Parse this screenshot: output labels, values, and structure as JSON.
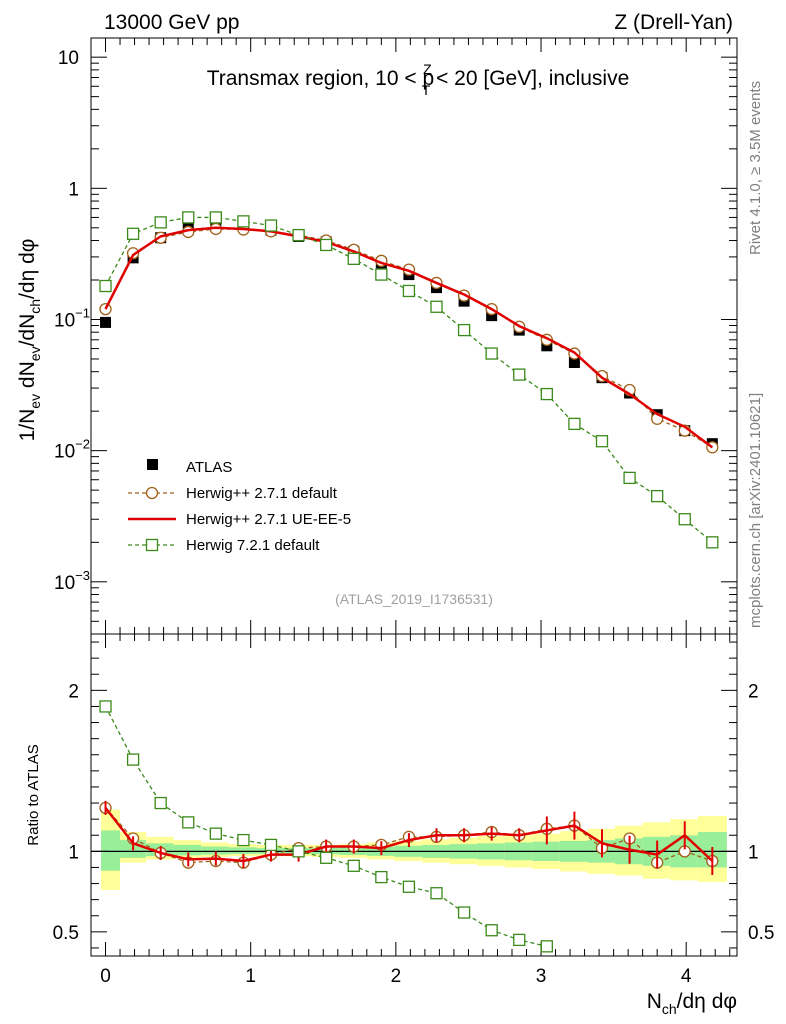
{
  "header": {
    "left": "13000 GeV pp",
    "right": "Z (Drell-Yan)"
  },
  "side_labels": {
    "rivet": "Rivet 4.1.0, ≥ 3.5M events",
    "mcplots": "mcplots.cern.ch [arXiv:2401.10621]"
  },
  "chart_data": {
    "type": "scatter",
    "title": "Transmax region, 10 < p_T^Z < 20 [GeV], inclusive",
    "title_parts": {
      "pre": "Transmax region, 10 < p",
      "sup": "Z",
      "sub": "T",
      "post": " < 20 [GeV], inclusive"
    },
    "analysis_label": "(ATLAS_2019_I1736531)",
    "xlabel": "N_ch/dη dφ",
    "xlabel_parts": {
      "n": "N",
      "sub": "ch",
      "rest": "/dη dφ"
    },
    "ylabel": "1/N_ev dN_ev/dN_ch/dη dφ",
    "ylabel_parts": {
      "p1": "1/N",
      "s1": "ev",
      "p2": " dN",
      "s2": "ev",
      "p3": "/dN",
      "s3": "ch",
      "p4": "/dη dφ"
    },
    "ratio_ylabel": "Ratio to ATLAS",
    "xlim": [
      -0.1,
      4.35
    ],
    "ylim": [
      0.0004,
      14
    ],
    "yscale": "log",
    "ratio_ylim": [
      0.35,
      2.35
    ],
    "x_ticks": [
      "0",
      "1",
      "2",
      "3",
      "4"
    ],
    "y_ticks": [
      {
        "value": 0.001,
        "base": "10",
        "exp": "−3"
      },
      {
        "value": 0.01,
        "base": "10",
        "exp": "−2"
      },
      {
        "value": 0.1,
        "base": "10",
        "exp": "−1"
      },
      {
        "value": 1,
        "base": "1",
        "exp": ""
      },
      {
        "value": 10,
        "base": "10",
        "exp": ""
      }
    ],
    "ratio_ticks": [
      "0.5",
      "1",
      "2"
    ],
    "x": [
      0,
      0.19,
      0.38,
      0.57,
      0.76,
      0.95,
      1.14,
      1.33,
      1.52,
      1.71,
      1.9,
      2.09,
      2.28,
      2.47,
      2.66,
      2.85,
      3.04,
      3.23,
      3.42,
      3.61,
      3.8,
      3.99,
      4.18
    ],
    "band_edges": [
      -0.1,
      0.1,
      0.28,
      0.47,
      0.66,
      0.85,
      1.04,
      1.23,
      1.42,
      1.61,
      1.8,
      1.99,
      2.18,
      2.37,
      2.56,
      2.75,
      2.94,
      3.13,
      3.32,
      3.51,
      3.7,
      3.89,
      4.08,
      4.28
    ],
    "band_inner": [
      [
        0.88,
        1.13
      ],
      [
        0.96,
        1.07
      ],
      [
        0.97,
        1.05
      ],
      [
        0.975,
        1.04
      ],
      [
        0.98,
        1.03
      ],
      [
        0.983,
        1.025
      ],
      [
        0.985,
        1.02
      ],
      [
        0.985,
        1.02
      ],
      [
        0.982,
        1.022
      ],
      [
        0.978,
        1.025
      ],
      [
        0.972,
        1.03
      ],
      [
        0.966,
        1.035
      ],
      [
        0.96,
        1.04
      ],
      [
        0.955,
        1.045
      ],
      [
        0.95,
        1.05
      ],
      [
        0.945,
        1.055
      ],
      [
        0.94,
        1.06
      ],
      [
        0.935,
        1.065
      ],
      [
        0.93,
        1.07
      ],
      [
        0.92,
        1.08
      ],
      [
        0.91,
        1.09
      ],
      [
        0.9,
        1.1
      ],
      [
        0.9,
        1.12
      ]
    ],
    "band_outer": [
      [
        0.76,
        1.26
      ],
      [
        0.93,
        1.12
      ],
      [
        0.95,
        1.09
      ],
      [
        0.96,
        1.07
      ],
      [
        0.965,
        1.055
      ],
      [
        0.97,
        1.045
      ],
      [
        0.97,
        1.04
      ],
      [
        0.97,
        1.04
      ],
      [
        0.965,
        1.04
      ],
      [
        0.96,
        1.045
      ],
      [
        0.95,
        1.055
      ],
      [
        0.94,
        1.065
      ],
      [
        0.93,
        1.075
      ],
      [
        0.92,
        1.085
      ],
      [
        0.91,
        1.095
      ],
      [
        0.9,
        1.1
      ],
      [
        0.89,
        1.11
      ],
      [
        0.875,
        1.125
      ],
      [
        0.86,
        1.14
      ],
      [
        0.85,
        1.16
      ],
      [
        0.83,
        1.18
      ],
      [
        0.82,
        1.2
      ],
      [
        0.81,
        1.22
      ]
    ],
    "series": [
      {
        "name": "ATLAS",
        "style": "data",
        "color": "#000000",
        "values": [
          0.095,
          0.295,
          0.42,
          0.5,
          0.52,
          0.52,
          0.48,
          0.43,
          0.39,
          0.33,
          0.27,
          0.22,
          0.175,
          0.138,
          0.107,
          0.083,
          0.063,
          0.047,
          0.036,
          0.0275,
          0.0188,
          0.0142,
          0.0113
        ]
      },
      {
        "name": "Herwig++ 2.7.1 default",
        "style": "circle-dashed",
        "color": "#a0601a",
        "values": [
          0.12,
          0.32,
          0.42,
          0.465,
          0.49,
          0.485,
          0.47,
          0.44,
          0.4,
          0.34,
          0.28,
          0.24,
          0.19,
          0.152,
          0.12,
          0.088,
          0.07,
          0.055,
          0.037,
          0.029,
          0.0175,
          0.0142,
          0.0106
        ],
        "ratio": [
          1.27,
          1.08,
          0.99,
          0.93,
          0.94,
          0.93,
          0.98,
          1.02,
          1.03,
          1.03,
          1.04,
          1.09,
          1.09,
          1.1,
          1.12,
          1.1,
          1.14,
          1.16,
          1.02,
          1.08,
          0.93,
          1.0,
          0.94
        ]
      },
      {
        "name": "Herwig++ 2.7.1 UE-EE-5",
        "style": "line",
        "color": "#e00000",
        "values": [
          0.12,
          0.31,
          0.43,
          0.48,
          0.5,
          0.49,
          0.47,
          0.43,
          0.39,
          0.33,
          0.27,
          0.235,
          0.19,
          0.155,
          0.12,
          0.089,
          0.072,
          0.056,
          0.036,
          0.027,
          0.019,
          0.0152,
          0.0106
        ],
        "ratio": [
          1.27,
          1.05,
          0.99,
          0.95,
          0.955,
          0.94,
          0.98,
          0.98,
          1.03,
          1.03,
          1.02,
          1.07,
          1.1,
          1.1,
          1.11,
          1.1,
          1.13,
          1.16,
          1.05,
          1.01,
          0.98,
          1.1,
          0.94
        ]
      },
      {
        "name": "Herwig 7.2.1 default",
        "style": "square-dashed",
        "color": "#3a8a1a",
        "values": [
          0.18,
          0.45,
          0.55,
          0.6,
          0.6,
          0.56,
          0.52,
          0.44,
          0.37,
          0.29,
          0.22,
          0.165,
          0.125,
          0.083,
          0.055,
          0.038,
          0.027,
          0.016,
          0.0118,
          0.0062,
          0.0045,
          0.003,
          0.002
        ],
        "ratio": [
          1.9,
          1.57,
          1.3,
          1.18,
          1.11,
          1.07,
          1.04,
          1.0,
          0.96,
          0.91,
          0.84,
          0.78,
          0.74,
          0.62,
          0.51,
          0.45,
          0.41
        ]
      }
    ]
  }
}
